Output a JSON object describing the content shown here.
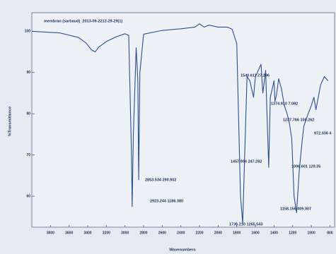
{
  "chart_data": {
    "type": "line",
    "title": "membran (sarbaud)_2013-09-2212-29-29(1)",
    "x_label": "Wavenumbers",
    "y_label": "%Transmittance",
    "color": "#2c4f8e",
    "grid": false,
    "xlim": [
      4000,
      750
    ],
    "ylim": [
      52.5,
      104.5
    ],
    "xticks": [
      3800,
      3600,
      3400,
      3200,
      3000,
      2800,
      2600,
      2400,
      2200,
      2000,
      1800,
      1600,
      1400,
      1200,
      1000,
      800
    ],
    "yticks": [
      60,
      70,
      80,
      90,
      100
    ],
    "x": [
      4000,
      3700,
      3500,
      3420,
      3360,
      3320,
      3280,
      3200,
      3100,
      3000,
      2960,
      2930,
      2923,
      2910,
      2880,
      2862,
      2853,
      2840,
      2800,
      2600,
      2400,
      2250,
      2200,
      2150,
      2100,
      2000,
      1900,
      1850,
      1800,
      1760,
      1736,
      1715,
      1690,
      1660,
      1620,
      1600,
      1560,
      1540,
      1520,
      1490,
      1470,
      1457,
      1440,
      1420,
      1400,
      1390,
      1374,
      1350,
      1320,
      1290,
      1260,
      1237,
      1210,
      1185,
      1158,
      1130,
      1100,
      1080,
      1050,
      1000,
      972,
      950,
      900,
      860,
      820
    ],
    "values": [
      100,
      99.6,
      98.5,
      97.2,
      95.5,
      95.0,
      96.2,
      97.5,
      98.6,
      99.4,
      99.0,
      70,
      57.5,
      75,
      96,
      88,
      64,
      90,
      99.3,
      100.2,
      100.6,
      101.0,
      101.8,
      101,
      101.5,
      101,
      101,
      100.5,
      97,
      60,
      53.5,
      70,
      89,
      88,
      84,
      89,
      91,
      92,
      85,
      90.5,
      76,
      67,
      84,
      86,
      88,
      83,
      84.5,
      88.5,
      86,
      82,
      80,
      78,
      74,
      60,
      56,
      66,
      73,
      77,
      79,
      82,
      84,
      81,
      87,
      89,
      88
    ],
    "annotations": [
      "2853.534 290.902",
      "2923.244 1186.380",
      "1540.611 27.296",
      "1374.910 7.082",
      "1237.766 100.262",
      "972.036 4",
      "1457.994 247.282",
      "1096.601 129.35",
      "1736.210 1265.543",
      "1158.156 409.007"
    ]
  }
}
